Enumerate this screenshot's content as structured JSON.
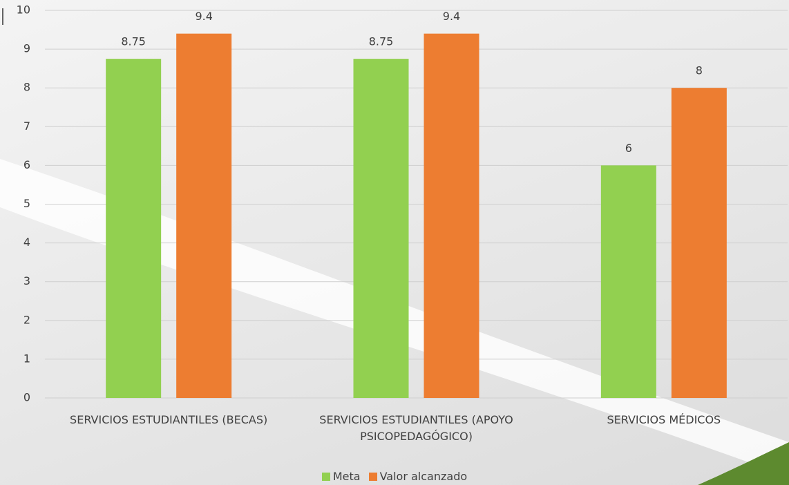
{
  "chart_data": {
    "type": "bar",
    "categories": [
      "SERVICIOS ESTUDIANTILES (BECAS)",
      "SERVICIOS ESTUDIANTILES (APOYO PSICOPEDAGÓGICO)",
      "SERVICIOS MÉDICOS"
    ],
    "series": [
      {
        "name": "Meta",
        "color": "#92d050",
        "values": [
          8.75,
          8.75,
          6
        ]
      },
      {
        "name": "Valor alcanzado",
        "color": "#ed7d31",
        "values": [
          9.4,
          9.4,
          8
        ]
      }
    ],
    "ylim": [
      0,
      10
    ],
    "yticks": [
      0,
      1,
      2,
      3,
      4,
      5,
      6,
      7,
      8,
      9,
      10
    ],
    "grid": true,
    "legend": "bottom"
  }
}
